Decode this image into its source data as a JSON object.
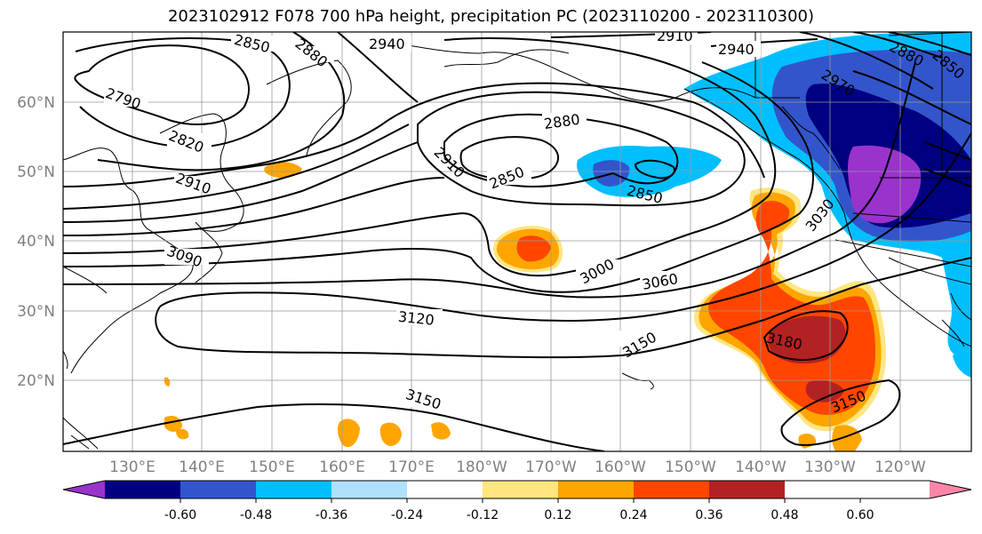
{
  "title": "2023102912 F078 700 hPa height, precipitation PC (2023110200 - 2023110300)",
  "lat_labels": [
    "60°N",
    "50°N",
    "40°N",
    "30°N",
    "20°N"
  ],
  "lon_labels": [
    "130°E",
    "140°E",
    "150°E",
    "160°E",
    "170°E",
    "180°W",
    "170°W",
    "160°W",
    "150°W",
    "140°W",
    "130°W",
    "120°W"
  ],
  "contour_labels": [
    "2850",
    "2880",
    "2940",
    "2910",
    "2940",
    "2880",
    "2850",
    "2790",
    "2820",
    "2910",
    "2880",
    "2910",
    "2850",
    "2850",
    "2970",
    "3030",
    "3090",
    "3000",
    "3060",
    "3120",
    "3150",
    "3180",
    "3150",
    "3150"
  ],
  "colorbar": {
    "tick_labels": [
      "-0.60",
      "-0.48",
      "-0.36",
      "-0.24",
      "-0.12",
      "0.12",
      "0.24",
      "0.36",
      "0.48",
      "0.60"
    ],
    "colors": [
      "#9933cc",
      "#000080",
      "#3355cc",
      "#00bfff",
      "#b0e0ff",
      "#ffffff",
      "#ffe680",
      "#ffa500",
      "#ff4500",
      "#b22222",
      "#ff85a8"
    ]
  }
}
